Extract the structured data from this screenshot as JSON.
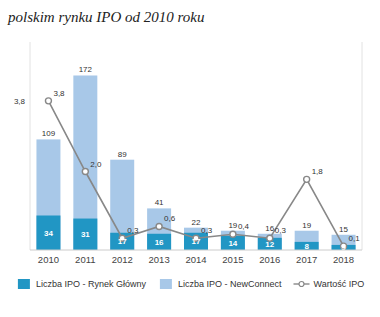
{
  "chart_data": {
    "type": "bar",
    "title": "polskim rynku IPO od 2010 roku",
    "categories": [
      "2010",
      "2011",
      "2012",
      "2013",
      "2014",
      "2015",
      "2016",
      "2017",
      "2018"
    ],
    "series": [
      {
        "name": "Liczba IPO - Rynek Główny",
        "color": "#2196c4",
        "values": [
          34,
          31,
          17,
          16,
          17,
          14,
          12,
          8,
          5
        ]
      },
      {
        "name": "Liczba IPO - NewConnect",
        "color": "#a8c8e8",
        "values": [
          109,
          172,
          89,
          41,
          22,
          19,
          16,
          19,
          15
        ]
      },
      {
        "name": "Wartość IPO",
        "type": "line",
        "axis": "y2",
        "color": "#888888",
        "marker": "circle",
        "values": [
          3.8,
          2.0,
          0.3,
          0.6,
          0.3,
          0.4,
          0.3,
          1.8,
          0.1
        ],
        "value_labels": [
          "3,8",
          "2,0",
          "0,3",
          "0,6",
          "0,3",
          "0,4",
          "0,3",
          "1,8",
          "0,1"
        ]
      }
    ],
    "stacked": false,
    "data_labels": true,
    "ylim": [
      0,
      205
    ],
    "yticks": [],
    "y2lim": [
      0,
      5.3
    ],
    "y2ticks": [],
    "tick_labels": "x",
    "grid": false,
    "legend": "bottom",
    "annotations": [
      {
        "text": "3,8",
        "y": 3.8,
        "axis": "y2"
      }
    ]
  }
}
